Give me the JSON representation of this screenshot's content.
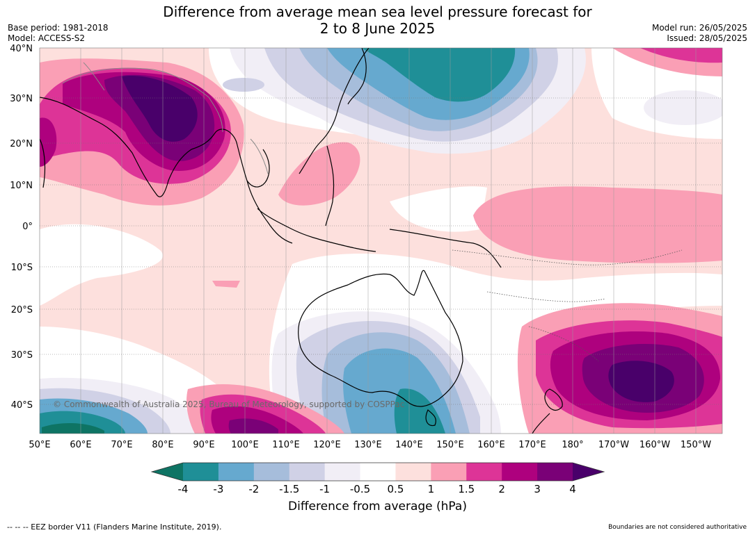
{
  "title_line1": "Difference from average mean sea level pressure forecast for",
  "title_line2": "2 to 8 June 2025",
  "meta_left": [
    "Base period: 1981-2018",
    "Model: ACCESS-S2"
  ],
  "meta_right": [
    "Model run: 26/05/2025",
    "Issued: 28/05/2025"
  ],
  "lat_labels": [
    "40°N",
    "30°N",
    "20°N",
    "10°N",
    "0°",
    "10°S",
    "20°S",
    "30°S",
    "40°S"
  ],
  "lon_labels": [
    "50°E",
    "60°E",
    "70°E",
    "80°E",
    "90°E",
    "100°E",
    "110°E",
    "120°E",
    "130°E",
    "140°E",
    "150°E",
    "160°E",
    "170°E",
    "180°",
    "170°W",
    "160°W",
    "150°W"
  ],
  "copyright": "© Commonwealth of Australia 2025, Bureau of Meteorology, supported by COSPPac",
  "colorbar": {
    "title": "Difference from average (hPa)",
    "tick_labels": [
      "-4",
      "-3",
      "-2",
      "-1.5",
      "-1",
      "-0.5",
      "0.5",
      "1",
      "1.5",
      "2",
      "3",
      "4"
    ],
    "colors": [
      "#0e7464",
      "#1f8f97",
      "#66a9cf",
      "#a6bddb",
      "#d0d1e6",
      "#f1eef6",
      "#ffffff",
      "#fde0dd",
      "#fa9fb5",
      "#dd3497",
      "#ae017e",
      "#7a0177",
      "#49006a"
    ]
  },
  "footer_left": "--  --  -- EEZ border V11 (Flanders Marine Institute, 2019).",
  "footer_right": "Boundaries are not considered authoritative"
}
